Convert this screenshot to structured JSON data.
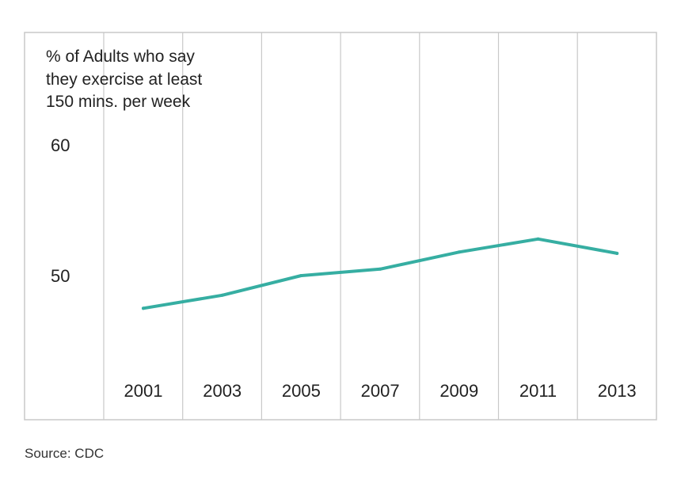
{
  "chart_data": {
    "type": "line",
    "title": "",
    "ylabel_lines": [
      "% of Adults who say",
      "they exercise at least",
      "150 mins. per week"
    ],
    "xlabel": "",
    "categories": [
      "2001",
      "2003",
      "2005",
      "2007",
      "2009",
      "2011",
      "2013"
    ],
    "series": [
      {
        "values": [
          47.5,
          48.5,
          50.0,
          50.5,
          51.8,
          52.8,
          51.7
        ]
      }
    ],
    "yticks": [
      "60",
      "50"
    ],
    "ytick_values": [
      60,
      50
    ],
    "ylim": [
      42,
      70
    ],
    "grid": "vertical",
    "legend": "none",
    "line_color": "#36aea2",
    "grid_color": "#c8c8c8"
  },
  "source": "Source: CDC"
}
